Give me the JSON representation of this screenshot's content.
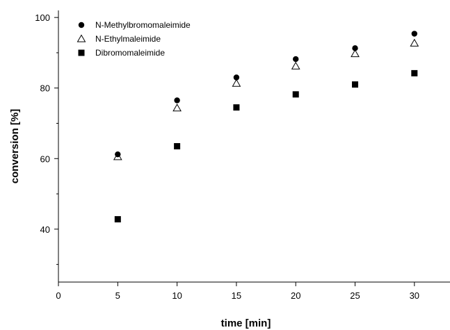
{
  "chart_data": {
    "type": "scatter",
    "title": "",
    "xlabel": "time [min]",
    "ylabel": "conversion [%]",
    "xlim": [
      0,
      33
    ],
    "ylim": [
      25,
      102
    ],
    "xticks": [
      0,
      5,
      10,
      15,
      20,
      25,
      30
    ],
    "yticks": [
      40,
      60,
      80,
      100
    ],
    "yminor_ticks": [
      30,
      50,
      70,
      90
    ],
    "grid": false,
    "legend_position": "top-left",
    "series": [
      {
        "name": "N-Methylbromomaleimide",
        "marker": "filled-circle",
        "color": "#000000",
        "x": [
          5,
          10,
          15,
          20,
          25,
          30
        ],
        "y": [
          61.2,
          76.5,
          83.0,
          88.2,
          91.3,
          95.4
        ]
      },
      {
        "name": "N-Ethylmaleimide",
        "marker": "open-triangle",
        "color": "#000000",
        "x": [
          5,
          10,
          15,
          20,
          25,
          30
        ],
        "y": [
          60.5,
          74.3,
          81.3,
          86.2,
          89.7,
          92.7
        ]
      },
      {
        "name": "Dibromomaleimide",
        "marker": "filled-square",
        "color": "#000000",
        "x": [
          5,
          10,
          15,
          20,
          25,
          30
        ],
        "y": [
          42.8,
          63.5,
          74.5,
          78.2,
          81.0,
          84.2
        ]
      }
    ]
  }
}
